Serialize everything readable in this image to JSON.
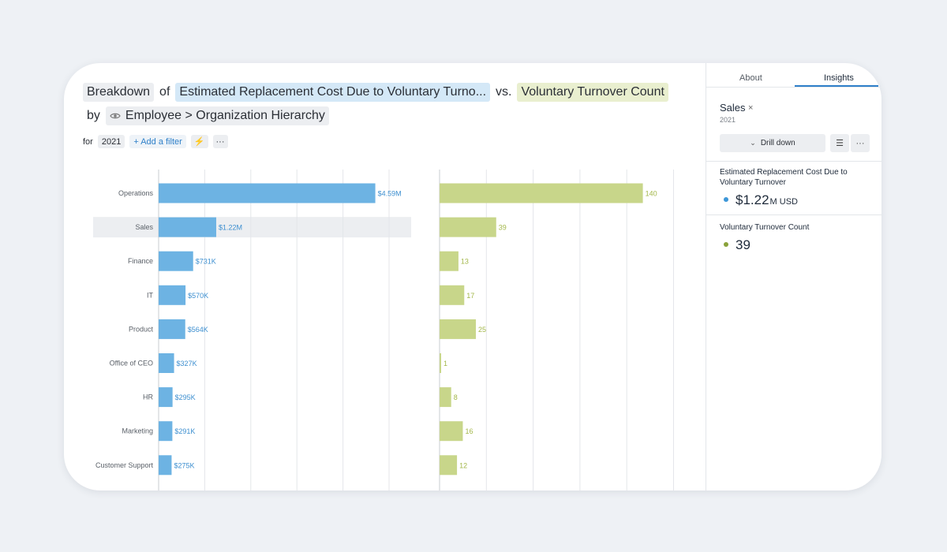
{
  "title": {
    "breakdown": "Breakdown",
    "of": "of",
    "metric1": "Estimated Replacement Cost Due to Voluntary Turno...",
    "vs": "vs.",
    "metric2": "Voluntary Turnover Count",
    "by": "by",
    "dimension": "Employee > Organization Hierarchy"
  },
  "filters": {
    "for_label": "for",
    "year": "2021",
    "add_filter": "+ Add a filter",
    "bolt": "⚡",
    "more": "···"
  },
  "colors": {
    "blue_bar": "#6db3e3",
    "green_bar": "#c8d68a",
    "blue_label": "#3d8fd0",
    "green_label": "#a3b74a",
    "highlight": "#eceef1",
    "dot_blue": "#3d97d8",
    "dot_green": "#8aa23a"
  },
  "chart_data": {
    "type": "bar",
    "orientation": "horizontal",
    "categories": [
      "Operations",
      "Sales",
      "Finance",
      "IT",
      "Product",
      "Office of CEO",
      "HR",
      "Marketing",
      "Customer Support"
    ],
    "highlighted_category": "Sales",
    "series": [
      {
        "name": "Estimated Replacement Cost Due to Voluntary Turnover",
        "values": [
          4590000,
          1220000,
          731000,
          570000,
          564000,
          327000,
          295000,
          291000,
          275000
        ],
        "labels": [
          "$4.59M",
          "$1.22M",
          "$731K",
          "$570K",
          "$564K",
          "$327K",
          "$295K",
          "$291K",
          "$275K"
        ],
        "xlim": [
          0,
          5500000
        ],
        "gridlines": 6
      },
      {
        "name": "Voluntary Turnover Count",
        "values": [
          140,
          39,
          13,
          17,
          25,
          1,
          8,
          16,
          12
        ],
        "labels": [
          "140",
          "39",
          "13",
          "17",
          "25",
          "1",
          "8",
          "16",
          "12"
        ],
        "xlim": [
          0,
          175
        ],
        "gridlines": 6
      }
    ]
  },
  "panel": {
    "tabs": [
      "About",
      "Insights"
    ],
    "selection": "Sales",
    "close": "×",
    "year": "2021",
    "drill_label": "Drill down",
    "drill_icon": "⌄",
    "list_icon": "☰",
    "more_icon": "···",
    "metric1_label": "Estimated Replacement Cost Due to Voluntary Turnover",
    "metric1_value": "$1.22",
    "metric1_unit": "M USD",
    "metric2_label": "Voluntary Turnover Count",
    "metric2_value": "39"
  }
}
